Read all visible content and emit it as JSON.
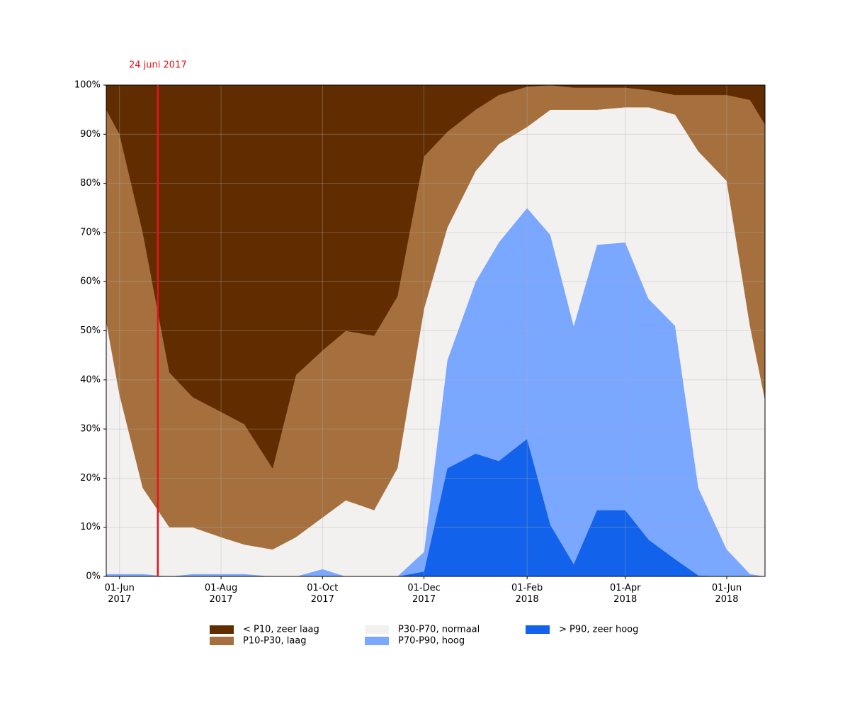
{
  "chart_data": {
    "type": "stacked_area",
    "x": [
      "2017-05-24",
      "2017-06-01",
      "2017-06-15",
      "2017-07-01",
      "2017-07-15",
      "2017-08-01",
      "2017-08-15",
      "2017-09-01",
      "2017-09-15",
      "2017-10-01",
      "2017-10-15",
      "2017-11-01",
      "2017-11-15",
      "2017-12-01",
      "2017-12-15",
      "2018-01-01",
      "2018-01-15",
      "2018-02-01",
      "2018-02-15",
      "2018-03-01",
      "2018-03-15",
      "2018-04-01",
      "2018-04-15",
      "2018-05-01",
      "2018-05-15",
      "2018-06-01",
      "2018-06-15",
      "2018-06-24"
    ],
    "series": [
      {
        "name": "> P90, zeer hoog",
        "color": "#1262eb",
        "values": [
          0,
          0,
          0,
          0,
          0,
          0,
          0,
          0,
          0,
          0,
          0,
          0,
          0,
          1,
          22,
          25,
          23.5,
          28,
          10.5,
          2.5,
          13.5,
          13.5,
          7.5,
          3.5,
          0.2,
          0,
          0,
          0
        ]
      },
      {
        "name": "P70-P90, hoog",
        "color": "#7aa7ff",
        "values": [
          0.5,
          0.5,
          0.5,
          0,
          0.5,
          0.5,
          0.5,
          0,
          0,
          1.5,
          0,
          0,
          0,
          4,
          22,
          35,
          44.5,
          47,
          59,
          48.5,
          54,
          54.5,
          49,
          47.5,
          17.8,
          5.5,
          0.5,
          0
        ]
      },
      {
        "name": "P30-P70, normaal",
        "color": "#f2f1f0",
        "values": [
          51.5,
          36.5,
          17.5,
          10,
          9.5,
          7.5,
          6,
          5.5,
          8,
          10.5,
          15.5,
          13.5,
          22,
          49.5,
          27,
          22.5,
          20,
          16.5,
          25.5,
          44,
          27.5,
          27.5,
          39,
          43,
          68.5,
          75,
          50.5,
          36
        ]
      },
      {
        "name": "P10-P30, laag",
        "color": "#a5703d",
        "values": [
          43,
          53,
          52,
          31.5,
          26.5,
          25.5,
          24.5,
          16.5,
          33,
          34,
          34.5,
          35.5,
          35,
          31,
          19.5,
          12.5,
          10,
          8.2,
          5,
          4.5,
          4.5,
          4,
          3.5,
          4,
          11.5,
          17.5,
          46,
          56
        ]
      },
      {
        "name": "< P10, zeer laag",
        "color": "#612c00",
        "values": [
          5,
          10,
          30,
          58.5,
          63.5,
          66.5,
          69,
          78,
          59,
          54,
          50,
          51,
          43,
          14.5,
          9.5,
          5,
          2,
          0.3,
          0,
          0.5,
          0.5,
          0.5,
          1,
          2,
          2,
          2,
          3,
          8
        ]
      }
    ],
    "xlim": [
      "2017-05-24",
      "2018-06-24"
    ],
    "xticks": [
      {
        "value": "2017-06-01",
        "label": "01-Jun\n2017"
      },
      {
        "value": "2017-08-01",
        "label": "01-Aug\n2017"
      },
      {
        "value": "2017-10-01",
        "label": "01-Oct\n2017"
      },
      {
        "value": "2017-12-01",
        "label": "01-Dec\n2017"
      },
      {
        "value": "2018-02-01",
        "label": "01-Feb\n2018"
      },
      {
        "value": "2018-04-01",
        "label": "01-Apr\n2018"
      },
      {
        "value": "2018-06-01",
        "label": "01-Jun\n2018"
      }
    ],
    "ylim": [
      0,
      100
    ],
    "yticks": [
      {
        "value": 0,
        "label": "0%"
      },
      {
        "value": 10,
        "label": "10%"
      },
      {
        "value": 20,
        "label": "20%"
      },
      {
        "value": 30,
        "label": "30%"
      },
      {
        "value": 40,
        "label": "40%"
      },
      {
        "value": 50,
        "label": "50%"
      },
      {
        "value": 60,
        "label": "60%"
      },
      {
        "value": 70,
        "label": "70%"
      },
      {
        "value": 80,
        "label": "80%"
      },
      {
        "value": 90,
        "label": "90%"
      },
      {
        "value": 100,
        "label": "100%"
      }
    ],
    "grid": true,
    "annotation": {
      "text": "24 juni 2017",
      "x": "2017-06-24",
      "color": "#e8131b"
    },
    "legend": "lower center"
  }
}
